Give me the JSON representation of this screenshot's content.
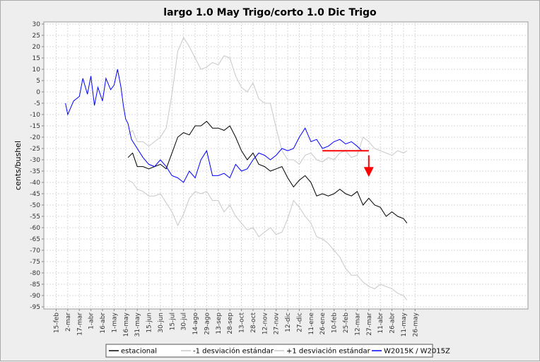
{
  "chart_data": {
    "type": "line",
    "title": "largo 1.0 May Trigo/corto 1.0 Dic Trigo",
    "ylabel": "cents/bushel",
    "xlabel": "",
    "ylim": [
      -95,
      30
    ],
    "y_ticks": [
      30,
      25,
      20,
      15,
      10,
      5,
      0,
      -5,
      -10,
      -15,
      -20,
      -25,
      -30,
      -35,
      -40,
      -45,
      -50,
      -55,
      -60,
      -65,
      -70,
      -75,
      -80,
      -85,
      -90,
      -95
    ],
    "x_tick_labels": [
      "15-feb",
      "2-mar",
      "17-mar",
      "1-abr",
      "16-abr",
      "1-may",
      "16-may",
      "31-may",
      "15-jun",
      "30-jun",
      "15-jul",
      "30-jul",
      "14-ago",
      "29-ago",
      "13-sep",
      "28-sep",
      "13-oct",
      "28-oct",
      "12-nov",
      "27-nov",
      "12-dic",
      "27-dic",
      "11-ene",
      "26-ene",
      "10-feb",
      "25-feb",
      "12-mar",
      "27-mar",
      "11-abr",
      "26-abr",
      "11-may",
      "26-may"
    ],
    "grid": true,
    "legend_position": "bottom",
    "series": [
      {
        "name": "estacional",
        "color": "#000000",
        "x": [
          6.2,
          6.6,
          7,
          7.5,
          8,
          8.5,
          9,
          9.5,
          10,
          10.5,
          11,
          11.5,
          12,
          12.5,
          13,
          13.5,
          14,
          14.5,
          15,
          15.5,
          16,
          16.5,
          17,
          17.5,
          18,
          18.5,
          19,
          19.5,
          20,
          20.5,
          21,
          21.5,
          22,
          22.5,
          23,
          23.5,
          24,
          24.5,
          25,
          25.5,
          26,
          26.5,
          27,
          27.5,
          28,
          28.5,
          29,
          29.5,
          30,
          30.3
        ],
        "values": [
          -29,
          -27,
          -33,
          -33,
          -34,
          -33,
          -32,
          -34,
          -27,
          -20,
          -18,
          -19,
          -15,
          -15,
          -13,
          -16,
          -16,
          -17,
          -15,
          -20,
          -26,
          -30,
          -27,
          -32,
          -33,
          -35,
          -34,
          -33,
          -38,
          -42,
          -39,
          -37,
          -40,
          -46,
          -45,
          -46,
          -45,
          -43,
          -45,
          -46,
          -44,
          -50,
          -47,
          -50,
          -51,
          -55,
          -53,
          -55,
          -56,
          -58
        ]
      },
      {
        "name": "-1 desviación estándar",
        "color": "#c8c8c8",
        "x": [
          6.2,
          6.6,
          7,
          7.5,
          8,
          8.5,
          9,
          9.5,
          10,
          10.5,
          11,
          11.5,
          12,
          12.5,
          13,
          13.5,
          14,
          14.5,
          15,
          15.5,
          16,
          16.5,
          17,
          17.5,
          18,
          18.5,
          19,
          19.5,
          20,
          20.5,
          21,
          21.5,
          22,
          22.5,
          23,
          23.5,
          24,
          24.5,
          25,
          25.5,
          26,
          26.5,
          27,
          27.5,
          28,
          28.5,
          29,
          29.5,
          30,
          30.3
        ],
        "values": [
          -39,
          -40,
          -43,
          -44,
          -46,
          -46,
          -45,
          -49,
          -53,
          -59,
          -54,
          -47,
          -44,
          -45,
          -44,
          -48,
          -48,
          -53,
          -50,
          -55,
          -58,
          -61,
          -60,
          -64,
          -62,
          -60,
          -63,
          -62,
          -56,
          -48,
          -51,
          -55,
          -58,
          -64,
          -65,
          -67,
          -70,
          -73,
          -78,
          -81,
          -81,
          -84,
          -86,
          -87,
          -85,
          -86,
          -87,
          -89,
          -90,
          -92
        ]
      },
      {
        "name": "+1 desviación estándar",
        "color": "#c8c8c8",
        "x": [
          6.2,
          6.6,
          7,
          7.5,
          8,
          8.5,
          9,
          9.5,
          10,
          10.5,
          11,
          11.5,
          12,
          12.5,
          13,
          13.5,
          14,
          14.5,
          15,
          15.5,
          16,
          16.5,
          17,
          17.5,
          18,
          18.5,
          19,
          19.5,
          20,
          20.5,
          21,
          21.5,
          22,
          22.5,
          23,
          23.5,
          24,
          24.5,
          25,
          25.5,
          26,
          26.5,
          27,
          27.5,
          28,
          28.5,
          29,
          29.5,
          30,
          30.3
        ],
        "values": [
          -19,
          -17,
          -22,
          -22,
          -24,
          -22,
          -20,
          -16,
          -1,
          18,
          24,
          20,
          15,
          10,
          11,
          13,
          12,
          16,
          15,
          7,
          2,
          0,
          4,
          -3,
          -5,
          -5,
          -16,
          -26,
          -30,
          -30,
          -32,
          -28,
          -27,
          -30,
          -31,
          -29,
          -30,
          -27,
          -26,
          -29,
          -28,
          -20,
          -22,
          -25,
          -26,
          -27,
          -28,
          -26,
          -27,
          -26
        ]
      },
      {
        "name": "W2015K / W2015Z",
        "color": "#0000ff",
        "x": [
          0.8,
          1,
          1.5,
          2,
          2.3,
          2.7,
          3,
          3.3,
          3.6,
          4,
          4.3,
          4.7,
          5,
          5.3,
          5.6,
          5.8,
          6,
          6.2,
          6.5,
          7,
          7.5,
          8,
          8.5,
          9,
          9.5,
          10,
          10.5,
          11,
          11.5,
          12,
          12.5,
          13,
          13.5,
          14,
          14.5,
          15,
          15.5,
          16,
          16.5,
          17,
          17.5,
          18,
          18.5,
          19,
          19.5,
          20,
          20.5,
          21,
          21.5,
          22,
          22.5,
          23,
          23.5,
          24,
          24.5,
          25,
          25.5,
          26,
          26.4
        ],
        "values": [
          -5,
          -10,
          -4,
          -2,
          6,
          -1,
          7,
          -6,
          2,
          -4,
          6,
          1,
          3,
          10,
          2,
          -6,
          -12,
          -14,
          -21,
          -25,
          -29,
          -32,
          -33,
          -30,
          -33,
          -37,
          -38,
          -40,
          -35,
          -38,
          -30,
          -26,
          -37,
          -37,
          -36,
          -38,
          -32,
          -35,
          -34,
          -30,
          -27,
          -28,
          -30,
          -28,
          -25,
          -26,
          -25,
          -20,
          -16,
          -22,
          -21,
          -25,
          -24,
          -22,
          -21,
          -23,
          -22,
          -24,
          -26
        ]
      },
      {
        "name": "",
        "color": "#ff0000",
        "x": [
          23.0,
          27.0
        ],
        "values": [
          -26,
          -26
        ]
      }
    ],
    "annotations": [
      {
        "type": "arrow-down",
        "color": "#ff0000",
        "x": 27.0,
        "from": -28,
        "to": -36
      }
    ]
  }
}
